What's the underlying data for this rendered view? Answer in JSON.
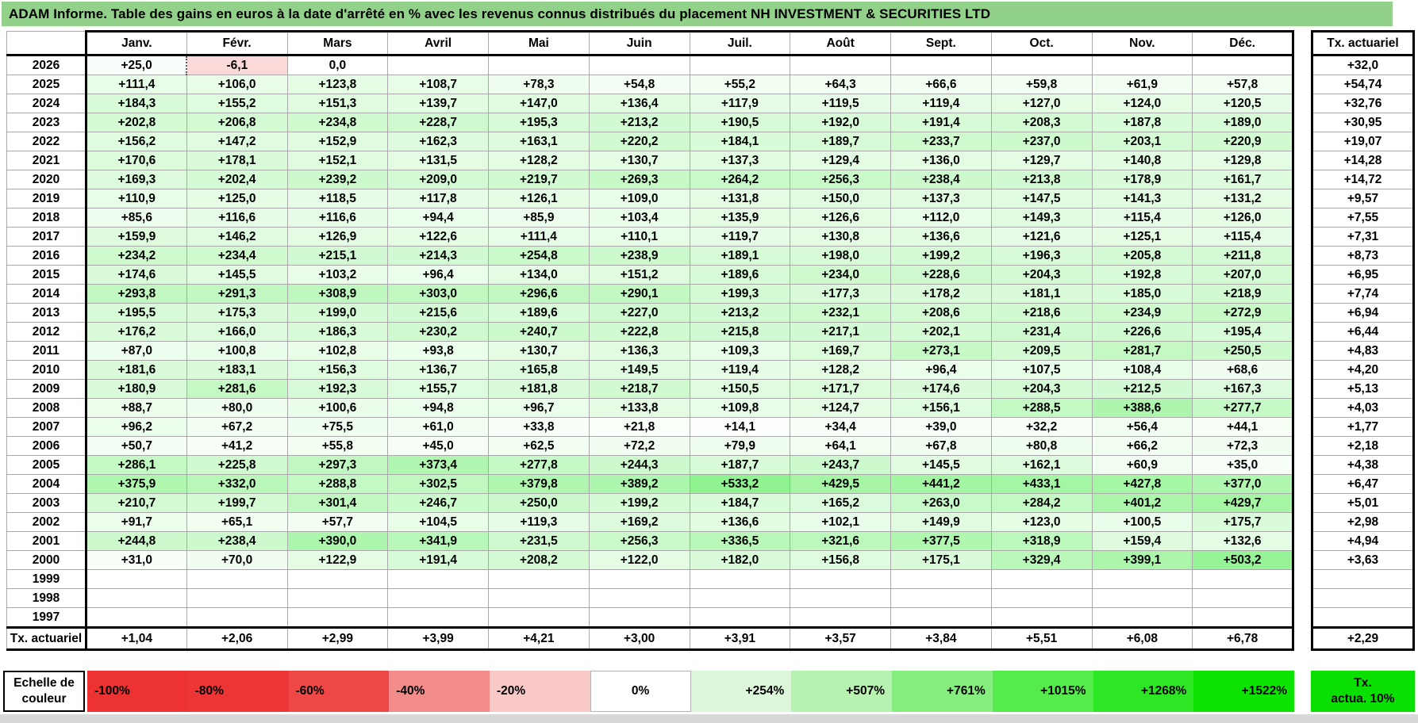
{
  "title": "ADAM Informe. Table des gains en euros à la date d'arrêté en % avec les revenus connus distribués du placement NH INVESTMENT & SECURITIES LTD",
  "columns": [
    "Janv.",
    "Févr.",
    "Mars",
    "Avril",
    "Mai",
    "Juin",
    "Juil.",
    "Août",
    "Sept.",
    "Oct.",
    "Nov.",
    "Déc."
  ],
  "right_column": {
    "header": "Tx. actuariel"
  },
  "rows": [
    {
      "year": "2026",
      "values": [
        "+25,0",
        "-6,1",
        "0,0",
        "",
        "",
        "",
        "",
        "",
        "",
        "",
        "",
        ""
      ],
      "tx": "+32,0"
    },
    {
      "year": "2025",
      "values": [
        "+111,4",
        "+106,0",
        "+123,8",
        "+108,7",
        "+78,3",
        "+54,8",
        "+55,2",
        "+64,3",
        "+66,6",
        "+59,8",
        "+61,9",
        "+57,8"
      ],
      "tx": "+54,74"
    },
    {
      "year": "2024",
      "values": [
        "+184,3",
        "+155,2",
        "+151,3",
        "+139,7",
        "+147,0",
        "+136,4",
        "+117,9",
        "+119,5",
        "+119,4",
        "+127,0",
        "+124,0",
        "+120,5"
      ],
      "tx": "+32,76"
    },
    {
      "year": "2023",
      "values": [
        "+202,8",
        "+206,8",
        "+234,8",
        "+228,7",
        "+195,3",
        "+213,2",
        "+190,5",
        "+192,0",
        "+191,4",
        "+208,3",
        "+187,8",
        "+189,0"
      ],
      "tx": "+30,95"
    },
    {
      "year": "2022",
      "values": [
        "+156,2",
        "+147,2",
        "+152,9",
        "+162,3",
        "+163,1",
        "+220,2",
        "+184,1",
        "+189,7",
        "+233,7",
        "+237,0",
        "+203,1",
        "+220,9"
      ],
      "tx": "+19,07"
    },
    {
      "year": "2021",
      "values": [
        "+170,6",
        "+178,1",
        "+152,1",
        "+131,5",
        "+128,2",
        "+130,7",
        "+137,3",
        "+129,4",
        "+136,0",
        "+129,7",
        "+140,8",
        "+129,8"
      ],
      "tx": "+14,28"
    },
    {
      "year": "2020",
      "values": [
        "+169,3",
        "+202,4",
        "+239,2",
        "+209,0",
        "+219,7",
        "+269,3",
        "+264,2",
        "+256,3",
        "+238,4",
        "+213,8",
        "+178,9",
        "+161,7"
      ],
      "tx": "+14,72"
    },
    {
      "year": "2019",
      "values": [
        "+110,9",
        "+125,0",
        "+118,5",
        "+117,8",
        "+126,1",
        "+109,0",
        "+131,8",
        "+150,0",
        "+137,3",
        "+147,5",
        "+141,3",
        "+131,2"
      ],
      "tx": "+9,57"
    },
    {
      "year": "2018",
      "values": [
        "+85,6",
        "+116,6",
        "+116,6",
        "+94,4",
        "+85,9",
        "+103,4",
        "+135,9",
        "+126,6",
        "+112,0",
        "+149,3",
        "+115,4",
        "+126,0"
      ],
      "tx": "+7,55"
    },
    {
      "year": "2017",
      "values": [
        "+159,9",
        "+146,2",
        "+126,9",
        "+122,6",
        "+111,4",
        "+110,1",
        "+119,7",
        "+130,8",
        "+136,6",
        "+121,6",
        "+125,1",
        "+115,4"
      ],
      "tx": "+7,31"
    },
    {
      "year": "2016",
      "values": [
        "+234,2",
        "+234,4",
        "+215,1",
        "+214,3",
        "+254,8",
        "+238,9",
        "+189,1",
        "+198,0",
        "+199,2",
        "+196,3",
        "+205,8",
        "+211,8"
      ],
      "tx": "+8,73"
    },
    {
      "year": "2015",
      "values": [
        "+174,6",
        "+145,5",
        "+103,2",
        "+96,4",
        "+134,0",
        "+151,2",
        "+189,6",
        "+234,0",
        "+228,6",
        "+204,3",
        "+192,8",
        "+207,0"
      ],
      "tx": "+6,95"
    },
    {
      "year": "2014",
      "values": [
        "+293,8",
        "+291,3",
        "+308,9",
        "+303,0",
        "+296,6",
        "+290,1",
        "+199,3",
        "+177,3",
        "+178,2",
        "+181,1",
        "+185,0",
        "+218,9"
      ],
      "tx": "+7,74"
    },
    {
      "year": "2013",
      "values": [
        "+195,5",
        "+175,3",
        "+199,0",
        "+215,6",
        "+189,6",
        "+227,0",
        "+213,2",
        "+232,1",
        "+208,6",
        "+218,6",
        "+234,9",
        "+272,9"
      ],
      "tx": "+6,94"
    },
    {
      "year": "2012",
      "values": [
        "+176,2",
        "+166,0",
        "+186,3",
        "+230,2",
        "+240,7",
        "+222,8",
        "+215,8",
        "+217,1",
        "+202,1",
        "+231,4",
        "+226,6",
        "+195,4"
      ],
      "tx": "+6,44"
    },
    {
      "year": "2011",
      "values": [
        "+87,0",
        "+100,8",
        "+102,8",
        "+93,8",
        "+130,7",
        "+136,3",
        "+109,3",
        "+169,7",
        "+273,1",
        "+209,5",
        "+281,7",
        "+250,5"
      ],
      "tx": "+4,83"
    },
    {
      "year": "2010",
      "values": [
        "+181,6",
        "+183,1",
        "+156,3",
        "+136,7",
        "+165,8",
        "+149,5",
        "+119,4",
        "+128,2",
        "+96,4",
        "+107,5",
        "+108,4",
        "+68,6"
      ],
      "tx": "+4,20"
    },
    {
      "year": "2009",
      "values": [
        "+180,9",
        "+281,6",
        "+192,3",
        "+155,7",
        "+181,8",
        "+218,7",
        "+150,5",
        "+171,7",
        "+174,6",
        "+204,3",
        "+212,5",
        "+167,3"
      ],
      "tx": "+5,13"
    },
    {
      "year": "2008",
      "values": [
        "+88,7",
        "+80,0",
        "+100,6",
        "+94,8",
        "+96,7",
        "+133,8",
        "+109,8",
        "+124,7",
        "+156,1",
        "+288,5",
        "+388,6",
        "+277,7"
      ],
      "tx": "+4,03"
    },
    {
      "year": "2007",
      "values": [
        "+96,2",
        "+67,2",
        "+75,5",
        "+61,0",
        "+33,8",
        "+21,8",
        "+14,1",
        "+34,4",
        "+39,0",
        "+32,2",
        "+56,4",
        "+44,1"
      ],
      "tx": "+1,77"
    },
    {
      "year": "2006",
      "values": [
        "+50,7",
        "+41,2",
        "+55,8",
        "+45,0",
        "+62,5",
        "+72,2",
        "+79,9",
        "+64,1",
        "+67,8",
        "+80,8",
        "+66,2",
        "+72,3"
      ],
      "tx": "+2,18"
    },
    {
      "year": "2005",
      "values": [
        "+286,1",
        "+225,8",
        "+297,3",
        "+373,4",
        "+277,8",
        "+244,3",
        "+187,7",
        "+243,7",
        "+145,5",
        "+162,1",
        "+60,9",
        "+35,0"
      ],
      "tx": "+4,38"
    },
    {
      "year": "2004",
      "values": [
        "+375,9",
        "+332,0",
        "+288,8",
        "+302,5",
        "+379,8",
        "+389,2",
        "+533,2",
        "+429,5",
        "+441,2",
        "+433,1",
        "+427,8",
        "+377,0"
      ],
      "tx": "+6,47"
    },
    {
      "year": "2003",
      "values": [
        "+210,7",
        "+199,7",
        "+301,4",
        "+246,7",
        "+250,0",
        "+199,2",
        "+184,7",
        "+165,2",
        "+263,0",
        "+284,2",
        "+401,2",
        "+429,7"
      ],
      "tx": "+5,01"
    },
    {
      "year": "2002",
      "values": [
        "+91,7",
        "+65,1",
        "+57,7",
        "+104,5",
        "+119,3",
        "+169,2",
        "+136,6",
        "+102,1",
        "+149,9",
        "+123,0",
        "+100,5",
        "+175,7"
      ],
      "tx": "+2,98"
    },
    {
      "year": "2001",
      "values": [
        "+244,8",
        "+238,4",
        "+390,0",
        "+341,9",
        "+231,5",
        "+256,3",
        "+336,5",
        "+321,6",
        "+377,5",
        "+318,9",
        "+159,4",
        "+132,6"
      ],
      "tx": "+4,94"
    },
    {
      "year": "2000",
      "values": [
        "+31,0",
        "+70,0",
        "+122,9",
        "+191,4",
        "+208,2",
        "+122,0",
        "+182,0",
        "+156,8",
        "+175,1",
        "+329,4",
        "+399,1",
        "+503,2"
      ],
      "tx": "+3,63"
    },
    {
      "year": "1999",
      "values": [
        "",
        "",
        "",
        "",
        "",
        "",
        "",
        "",
        "",
        "",
        "",
        ""
      ],
      "tx": ""
    },
    {
      "year": "1998",
      "values": [
        "",
        "",
        "",
        "",
        "",
        "",
        "",
        "",
        "",
        "",
        "",
        ""
      ],
      "tx": ""
    },
    {
      "year": "1997",
      "values": [
        "",
        "",
        "",
        "",
        "",
        "",
        "",
        "",
        "",
        "",
        "",
        ""
      ],
      "tx": ""
    }
  ],
  "tx_row": {
    "label": "Tx. actuariel",
    "values": [
      "+1,04",
      "+2,06",
      "+2,99",
      "+3,99",
      "+4,21",
      "+3,00",
      "+3,91",
      "+3,57",
      "+3,84",
      "+5,51",
      "+6,08",
      "+6,78"
    ],
    "right_value": "+2,29"
  },
  "special": {
    "dashed_left_cell": {
      "row": 0,
      "col": 1
    }
  },
  "scale": {
    "label_lines": [
      "Echelle de",
      "couleur"
    ],
    "cells": [
      {
        "label": "-100%",
        "color": "#ED3232",
        "align": "left"
      },
      {
        "label": "-80%",
        "color": "#ED3535",
        "align": "left"
      },
      {
        "label": "-60%",
        "color": "#EE4746",
        "align": "left"
      },
      {
        "label": "-40%",
        "color": "#F28C8A",
        "align": "left"
      },
      {
        "label": "-20%",
        "color": "#F8C9C7",
        "align": "left"
      },
      {
        "label": "0%",
        "color": "#FFFFFF",
        "align": "center",
        "bordered": true
      },
      {
        "label": "+254%",
        "color": "#DCF7DA",
        "align": "right"
      },
      {
        "label": "+507%",
        "color": "#B7F2B1",
        "align": "right"
      },
      {
        "label": "+761%",
        "color": "#86EE7E",
        "align": "right"
      },
      {
        "label": "+1015%",
        "color": "#55EB4C",
        "align": "right"
      },
      {
        "label": "+1268%",
        "color": "#2EE724",
        "align": "right"
      },
      {
        "label": "+1522%",
        "color": "#0CE400",
        "align": "right"
      }
    ],
    "tx_box": {
      "lines": [
        "Tx.",
        "actua. 10%"
      ],
      "color": "#09DF00"
    }
  },
  "colors": {
    "title_bg": "#92d189",
    "grid_line": "#a9a9a9",
    "positive_end": "#00E400",
    "negative_end": "#ED3131",
    "bottom_strip": "#d8d8d8"
  },
  "ramp": {
    "positive_rgb": [
      0,
      228,
      0
    ],
    "negative_rgb": [
      237,
      49,
      49
    ],
    "positive_max": 1522,
    "negative_max": 100,
    "positive_boost": 1.25,
    "negative_boost": 3
  }
}
